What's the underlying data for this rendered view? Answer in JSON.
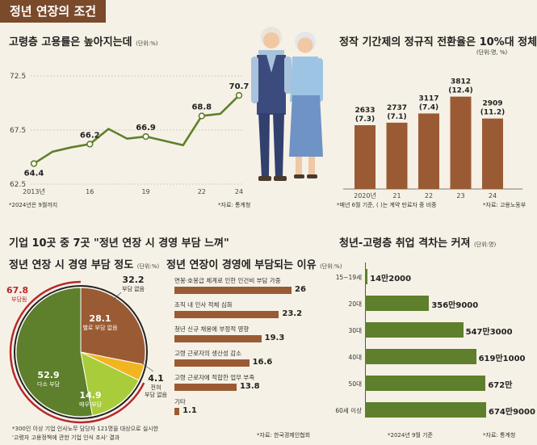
{
  "header": {
    "title": "정년 연장의 조건"
  },
  "charts": {
    "elderly": {
      "title": "고령층 고용률은 높아지는데",
      "unit": "(단위:%)",
      "note": "*2024년은 9월까지",
      "source": "*자료: 통계청",
      "illustration": "elderly-couple-icon"
    },
    "contract": {
      "title": "정작 기간제의 정규직 전환율은 10%대 정체",
      "unit": "(단위:명, %)",
      "note": "*매년 6월 기준, (  )는 계약 만료자 중 비중",
      "source": "*자료: 고용노동부"
    },
    "survey": {
      "title": "기업 10곳 중 7곳 \"정년 연장 시 경영 부담 느껴\"",
      "note1": "*300인 이상 기업 인사노무 담당자 121명을 대상으로 실시한",
      "note2": "'고령자 고용정책에 관한 기업 인식 조사' 결과"
    },
    "burden": {
      "title": "정년 연장 시 경영 부담 정도",
      "unit": "(단위:%)",
      "burden_total": "67.8",
      "burden_total_label": "부담됨"
    },
    "reasons": {
      "title": "정년 연장이 경영에 부담되는 이유",
      "unit": "(단위:%)",
      "source": "*자료: 한국경제인협회"
    },
    "gap": {
      "title": "청년-고령층 취업 격차는 커져",
      "unit": "(단위:명)",
      "note": "*2024년 9월 기준",
      "source": "*자료: 통계청"
    }
  },
  "colors": {
    "olive": "#5e7f2b",
    "brown": "#9a5b34",
    "header": "#7a4a2b",
    "red": "#b8282c",
    "yellow": "#f2b522",
    "lime": "#a9cc3a"
  },
  "chart_data": [
    {
      "id": "elderly-employment",
      "type": "line",
      "title": "고령층 고용률은 높아지는데",
      "x": [
        2013,
        2014,
        2015,
        2016,
        2017,
        2018,
        2019,
        2020,
        2021,
        2022,
        2023,
        2024
      ],
      "x_ticks": [
        "2013년",
        "16",
        "19",
        "22",
        "24"
      ],
      "values": [
        64.4,
        65.5,
        65.9,
        66.2,
        67.6,
        66.7,
        66.9,
        66.5,
        66.1,
        68.8,
        69.0,
        70.7
      ],
      "labels": [
        {
          "i": 0,
          "text": "64.4"
        },
        {
          "i": 3,
          "text": "66.2"
        },
        {
          "i": 6,
          "text": "66.9"
        },
        {
          "i": 9,
          "text": "68.8"
        },
        {
          "i": 11,
          "text": "70.7"
        }
      ],
      "y_ticks": [
        "72.5",
        "67.5",
        "62.5"
      ],
      "ylim": [
        62.5,
        72.5
      ],
      "grid": true
    },
    {
      "id": "contract-conversion",
      "type": "bar",
      "title": "정작 기간제의 정규직 전환율은 10%대 정체",
      "categories": [
        "2020년",
        "21",
        "22",
        "23",
        "24"
      ],
      "values": [
        2633,
        2737,
        3117,
        3812,
        2909
      ],
      "shares": [
        "(7.3)",
        "(7.1)",
        "(7.4)",
        "(12.4)",
        "(11.2)"
      ],
      "value_labels": [
        "2633",
        "2737",
        "3117",
        "3812",
        "2909"
      ],
      "ylim": [
        0,
        4000
      ]
    },
    {
      "id": "burden-degree",
      "type": "pie",
      "title": "정년 연장 시 경영 부담 정도",
      "slices": [
        {
          "label": "부담 없음",
          "value": 32.2,
          "text": "32.2",
          "color": "#ffffff"
        },
        {
          "label": "별로 부담 없음",
          "value": 28.1,
          "text": "28.1",
          "color": "#9a5b34"
        },
        {
          "label": "전혀 부담 없음",
          "value": 4.1,
          "text": "4.1",
          "color": "#f2b522"
        },
        {
          "label": "매우 부담",
          "value": 14.9,
          "text": "14.9",
          "color": "#a9cc3a"
        },
        {
          "label": "다소 부담",
          "value": 52.9,
          "text": "52.9",
          "color": "#5e7f2b"
        }
      ]
    },
    {
      "id": "burden-reasons",
      "type": "bar",
      "orientation": "horizontal",
      "title": "정년 연장이 경영에 부담되는 이유",
      "categories": [
        "연봉·호봉급 체계로 인한 인건비 부담 가중",
        "조직 내 인사 적체 심화",
        "청년 신규 채용에 부정적 영향",
        "고령 근로자의 생산성 감소",
        "고령 근로자에 적합한 업무 부족",
        "기타"
      ],
      "values": [
        26,
        23.2,
        19.3,
        16.6,
        13.8,
        1.1
      ],
      "value_labels": [
        "26",
        "23.2",
        "19.3",
        "16.6",
        "13.8",
        "1.1"
      ]
    },
    {
      "id": "employment-gap",
      "type": "bar",
      "orientation": "horizontal",
      "title": "청년-고령층 취업 격차는 커져",
      "categories": [
        "15~19세",
        "20대",
        "30대",
        "40대",
        "50대",
        "60세 이상"
      ],
      "values": [
        142000,
        3569000,
        5473000,
        6191000,
        6720000,
        6749000
      ],
      "value_labels": [
        "14만2000",
        "356만9000",
        "547만3000",
        "619만1000",
        "672만",
        "674만9000"
      ]
    }
  ]
}
